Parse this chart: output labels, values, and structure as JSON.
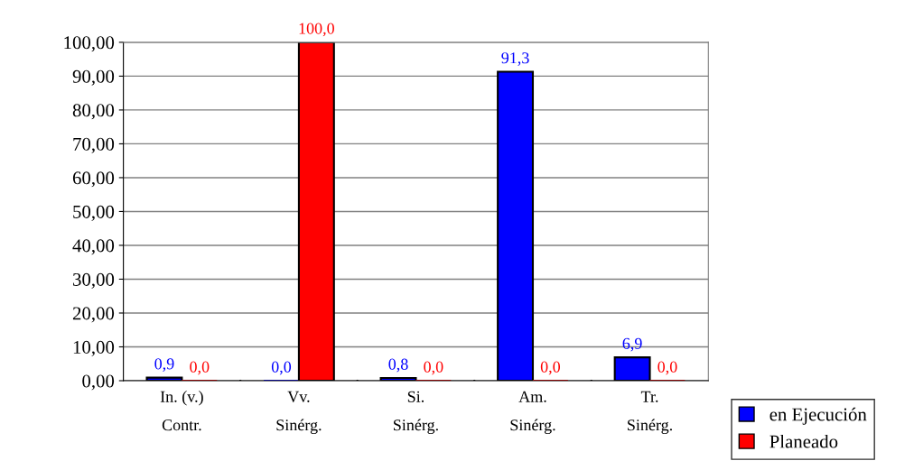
{
  "chart_data": {
    "type": "bar",
    "categories": [
      "In. (v.)\nContr.",
      "Vv.\nSinérg.",
      "Si.\nSinérg.",
      "Am.\nSinérg.",
      "Tr.\nSinérg."
    ],
    "series": [
      {
        "name": "en Ejecución",
        "color": "#0000ff",
        "values": [
          0.9,
          0.0,
          0.8,
          91.3,
          6.9
        ],
        "value_labels": [
          "0,9",
          "0,0",
          "0,8",
          "91,3",
          "6,9"
        ]
      },
      {
        "name": "Planeado",
        "color": "#ff0000",
        "values": [
          0.0,
          100.0,
          0.0,
          0.0,
          0.0
        ],
        "value_labels": [
          "0,0",
          "100,0",
          "0,0",
          "0,0",
          "0,0"
        ]
      }
    ],
    "ylim": [
      0,
      100
    ],
    "yticks": [
      {
        "value": 0,
        "label": "0,00"
      },
      {
        "value": 10,
        "label": "10,00"
      },
      {
        "value": 20,
        "label": "20,00"
      },
      {
        "value": 30,
        "label": "30,00"
      },
      {
        "value": 40,
        "label": "40,00"
      },
      {
        "value": 50,
        "label": "50,00"
      },
      {
        "value": 60,
        "label": "60,00"
      },
      {
        "value": 70,
        "label": "70,00"
      },
      {
        "value": 80,
        "label": "80,00"
      },
      {
        "value": 90,
        "label": "90,00"
      },
      {
        "value": 100,
        "label": "100,00"
      }
    ],
    "grid": "y",
    "legend": "bottom right"
  }
}
